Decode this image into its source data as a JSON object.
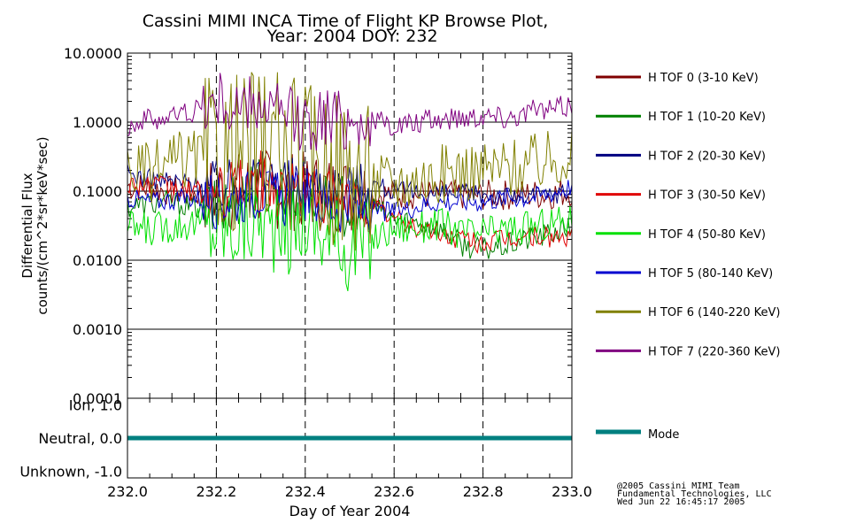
{
  "chart_data": {
    "type": "line",
    "title": "Cassini MIMI INCA Time of Flight KP Browse Plot,",
    "subtitle": "Year: 2004 DOY: 232",
    "xlabel": "Day of Year 2004",
    "ylabel": "Differential Flux",
    "ylabel2": "counts/(cm^2*sr*keV*sec)",
    "xlim": [
      232.0,
      233.0
    ],
    "ylim": [
      0.0001,
      10.0
    ],
    "yscale": "log",
    "x_ticks": [
      "232.0",
      "232.2",
      "232.4",
      "232.6",
      "232.8",
      "233.0"
    ],
    "y_ticks": [
      "10.0000",
      "1.0000",
      "0.1000",
      "0.0100",
      "0.0010",
      "0.0001"
    ],
    "legend_placement": "right",
    "x": [
      232.0,
      232.05,
      232.1,
      232.15,
      232.2,
      232.25,
      232.3,
      232.35,
      232.4,
      232.45,
      232.5,
      232.55,
      232.6,
      232.65,
      232.7,
      232.75,
      232.8,
      232.85,
      232.9,
      232.95,
      233.0
    ],
    "series": [
      {
        "name": "H TOF 0 (3-10 KeV)",
        "color": "#800000",
        "values": [
          0.12,
          0.11,
          0.1,
          0.095,
          0.09,
          0.1,
          0.11,
          0.1,
          0.1,
          0.095,
          0.09,
          0.09,
          0.09,
          0.09,
          0.09,
          0.088,
          0.088,
          0.088,
          0.09,
          0.09,
          0.1
        ]
      },
      {
        "name": "H TOF 1 (10-20 KeV)",
        "color": "#008000",
        "values": [
          0.06,
          0.065,
          0.07,
          0.06,
          0.05,
          0.09,
          0.12,
          0.1,
          0.11,
          0.07,
          0.06,
          0.06,
          0.04,
          0.035,
          0.03,
          0.017,
          0.014,
          0.016,
          0.02,
          0.024,
          0.03
        ]
      },
      {
        "name": "H TOF 2 (20-30 KeV)",
        "color": "#000080",
        "values": [
          0.18,
          0.15,
          0.14,
          0.13,
          0.12,
          0.13,
          0.18,
          0.14,
          0.13,
          0.12,
          0.11,
          0.13,
          0.1,
          0.095,
          0.09,
          0.09,
          0.09,
          0.085,
          0.085,
          0.09,
          0.1
        ]
      },
      {
        "name": "H TOF 3 (30-50 KeV)",
        "color": "#e00000",
        "values": [
          0.13,
          0.12,
          0.11,
          0.1,
          0.08,
          0.12,
          0.15,
          0.1,
          0.12,
          0.08,
          0.07,
          0.06,
          0.04,
          0.03,
          0.025,
          0.02,
          0.018,
          0.02,
          0.022,
          0.022,
          0.02
        ]
      },
      {
        "name": "H TOF 4 (50-80 KeV)",
        "color": "#00e000",
        "values": [
          0.03,
          0.028,
          0.032,
          0.035,
          0.03,
          0.03,
          0.04,
          0.02,
          0.04,
          0.02,
          0.015,
          0.02,
          0.03,
          0.03,
          0.035,
          0.025,
          0.025,
          0.028,
          0.03,
          0.035,
          0.04
        ]
      },
      {
        "name": "H TOF 5 (80-140 KeV)",
        "color": "#0000d0",
        "values": [
          0.08,
          0.07,
          0.075,
          0.08,
          0.07,
          0.08,
          0.1,
          0.07,
          0.09,
          0.06,
          0.06,
          0.05,
          0.05,
          0.06,
          0.07,
          0.07,
          0.07,
          0.08,
          0.08,
          0.09,
          0.12
        ]
      },
      {
        "name": "H TOF 6 (140-220 KeV)",
        "color": "#808000",
        "values": [
          0.2,
          0.18,
          0.25,
          0.3,
          0.35,
          0.4,
          0.5,
          0.35,
          0.3,
          0.25,
          0.2,
          0.15,
          0.13,
          0.15,
          0.17,
          0.2,
          0.2,
          0.22,
          0.24,
          0.28,
          0.38
        ]
      },
      {
        "name": "H TOF 7 (220-360 KeV)",
        "color": "#800080",
        "values": [
          0.9,
          1.1,
          1.2,
          1.5,
          2.0,
          1.5,
          1.8,
          1.2,
          1.0,
          1.2,
          1.1,
          1.0,
          0.9,
          0.95,
          1.1,
          1.2,
          1.3,
          1.2,
          1.4,
          1.5,
          1.8
        ]
      }
    ],
    "mode_panel": {
      "ylim": [
        -1.2,
        1.2
      ],
      "y_ticks": [
        "Ion, 1.0",
        "Neutral, 0.0",
        "Unknown, -1.0"
      ],
      "y_tick_values": [
        1.0,
        0.0,
        -1.0
      ],
      "series": {
        "name": "Mode",
        "color": "#008080",
        "value": 0.0
      }
    }
  },
  "credits": {
    "line1": "@2005 Cassini MIMI Team",
    "line2": "Fundamental Technologies, LLC",
    "line3": "Wed Jun 22 16:45:17 2005"
  }
}
